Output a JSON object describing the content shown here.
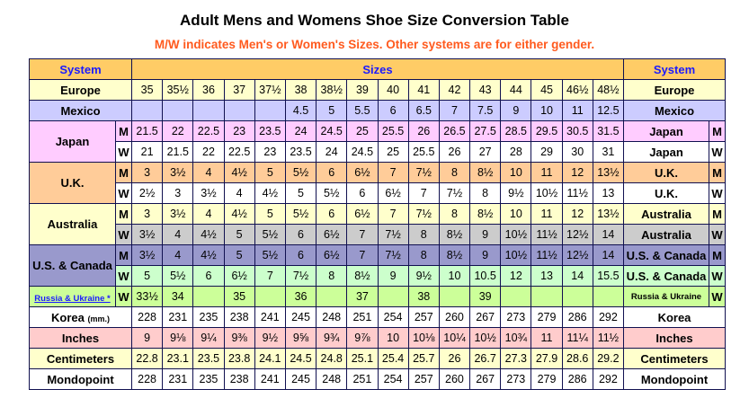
{
  "title": "Adult Mens and Womens Shoe Size Conversion Table",
  "subtitle": "M/W indicates Men's or Women's Sizes. Other systems are for either gender.",
  "header": {
    "system_left": "System",
    "sizes": "Sizes",
    "system_right": "System"
  },
  "colors": {
    "header": "#ffcc66",
    "europe": "#ffffcc",
    "mexico": "#ccccff",
    "japan_m": "#ffccff",
    "uk_m": "#ffcc99",
    "australia_m": "#ffffcc",
    "australia_w": "#cccccc",
    "us_m": "#9999cc",
    "us_w": "#ccffcc",
    "russia": "#ccff99",
    "inches": "#ffcccc",
    "centimeters": "#ffffcc",
    "white": "#ffffff",
    "subtitle": "#ff5a1e",
    "system_text": "#1a1aff"
  },
  "groups": [
    {
      "label": "Europe",
      "right_label": "Europe",
      "label_color": "#ffffcc",
      "rows": [
        {
          "mw": "",
          "color": "#ffffcc",
          "cells": [
            "35",
            "35½",
            "36",
            "37",
            "37½",
            "38",
            "38½",
            "39",
            "40",
            "41",
            "42",
            "43",
            "44",
            "45",
            "46½",
            "48½"
          ]
        }
      ]
    },
    {
      "label": "Mexico",
      "right_label": "Mexico",
      "label_color": "#ccccff",
      "rows": [
        {
          "mw": "",
          "color": "#ccccff",
          "cells": [
            "",
            "",
            "",
            "",
            "",
            "4.5",
            "5",
            "5.5",
            "6",
            "6.5",
            "7",
            "7.5",
            "9",
            "10",
            "11",
            "12.5"
          ]
        }
      ]
    },
    {
      "label": "Japan",
      "right_label": "Japan",
      "label_color": "#ffccff",
      "rows": [
        {
          "mw": "M",
          "color": "#ffccff",
          "cells": [
            "21.5",
            "22",
            "22.5",
            "23",
            "23.5",
            "24",
            "24.5",
            "25",
            "25.5",
            "26",
            "26.5",
            "27.5",
            "28.5",
            "29.5",
            "30.5",
            "31.5"
          ]
        },
        {
          "mw": "W",
          "color": "#ffffff",
          "cells": [
            "21",
            "21.5",
            "22",
            "22.5",
            "23",
            "23.5",
            "24",
            "24.5",
            "25",
            "25.5",
            "26",
            "27",
            "28",
            "29",
            "30",
            "31"
          ]
        }
      ]
    },
    {
      "label": "U.K.",
      "right_label": "U.K.",
      "label_color": "#ffcc99",
      "rows": [
        {
          "mw": "M",
          "color": "#ffcc99",
          "cells": [
            "3",
            "3½",
            "4",
            "4½",
            "5",
            "5½",
            "6",
            "6½",
            "7",
            "7½",
            "8",
            "8½",
            "10",
            "11",
            "12",
            "13½"
          ]
        },
        {
          "mw": "W",
          "color": "#ffffff",
          "cells": [
            "2½",
            "3",
            "3½",
            "4",
            "4½",
            "5",
            "5½",
            "6",
            "6½",
            "7",
            "7½",
            "8",
            "9½",
            "10½",
            "11½",
            "13"
          ]
        }
      ]
    },
    {
      "label": "Australia",
      "right_label": "Australia",
      "label_color": "#ffffcc",
      "rows": [
        {
          "mw": "M",
          "color": "#ffffcc",
          "cells": [
            "3",
            "3½",
            "4",
            "4½",
            "5",
            "5½",
            "6",
            "6½",
            "7",
            "7½",
            "8",
            "8½",
            "10",
            "11",
            "12",
            "13½"
          ]
        },
        {
          "mw": "W",
          "color": "#cccccc",
          "cells": [
            "3½",
            "4",
            "4½",
            "5",
            "5½",
            "6",
            "6½",
            "7",
            "7½",
            "8",
            "8½",
            "9",
            "10½",
            "11½",
            "12½",
            "14"
          ]
        }
      ]
    },
    {
      "label": "U.S. & Canada",
      "right_label": "U.S. & Canada",
      "label_color": "#9999cc",
      "rows": [
        {
          "mw": "M",
          "color": "#9999cc",
          "cells": [
            "3½",
            "4",
            "4½",
            "5",
            "5½",
            "6",
            "6½",
            "7",
            "7½",
            "8",
            "8½",
            "9",
            "10½",
            "11½",
            "12½",
            "14"
          ]
        },
        {
          "mw": "W",
          "color": "#ccffcc",
          "cells": [
            "5",
            "5½",
            "6",
            "6½",
            "7",
            "7½",
            "8",
            "8½",
            "9",
            "9½",
            "10",
            "10.5",
            "12",
            "13",
            "14",
            "15.5"
          ]
        }
      ]
    },
    {
      "label": "Russia & Ukraine *",
      "right_label": "Russia & Ukraine",
      "label_color": "#ccff99",
      "link": true,
      "rows": [
        {
          "mw": "W",
          "color": "#ccff99",
          "cells": [
            "33½",
            "34",
            "",
            "35",
            "",
            "36",
            "",
            "37",
            "",
            "38",
            "",
            "39",
            "",
            "",
            "",
            ""
          ]
        }
      ]
    },
    {
      "label": "Korea",
      "label_unit": "(mm.)",
      "right_label": "Korea",
      "label_color": "#ffffff",
      "rows": [
        {
          "mw": "",
          "color": "#ffffff",
          "cells": [
            "228",
            "231",
            "235",
            "238",
            "241",
            "245",
            "248",
            "251",
            "254",
            "257",
            "260",
            "267",
            "273",
            "279",
            "286",
            "292"
          ]
        }
      ]
    },
    {
      "label": "Inches",
      "right_label": "Inches",
      "label_color": "#ffcccc",
      "rows": [
        {
          "mw": "",
          "color": "#ffcccc",
          "cells": [
            "9",
            "9⅛",
            "9¼",
            "9⅜",
            "9½",
            "9⅝",
            "9¾",
            "9⅞",
            "10",
            "10⅛",
            "10¼",
            "10½",
            "10¾",
            "11",
            "11¼",
            "11½"
          ]
        }
      ]
    },
    {
      "label": "Centimeters",
      "right_label": "Centimeters",
      "label_color": "#ffffcc",
      "rows": [
        {
          "mw": "",
          "color": "#ffffcc",
          "cells": [
            "22.8",
            "23.1",
            "23.5",
            "23.8",
            "24.1",
            "24.5",
            "24.8",
            "25.1",
            "25.4",
            "25.7",
            "26",
            "26.7",
            "27.3",
            "27.9",
            "28.6",
            "29.2"
          ]
        }
      ]
    },
    {
      "label": "Mondopoint",
      "right_label": "Mondopoint",
      "label_color": "#ffffff",
      "rows": [
        {
          "mw": "",
          "color": "#ffffff",
          "cells": [
            "228",
            "231",
            "235",
            "238",
            "241",
            "245",
            "248",
            "251",
            "254",
            "257",
            "260",
            "267",
            "273",
            "279",
            "286",
            "292"
          ]
        }
      ]
    }
  ]
}
